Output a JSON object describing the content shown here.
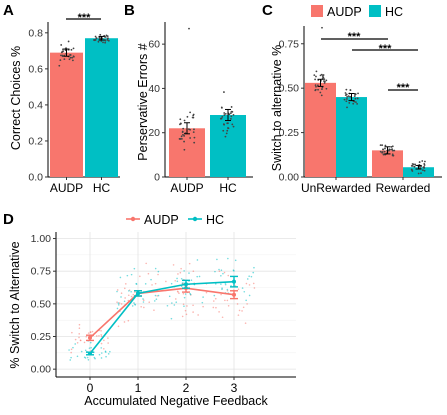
{
  "colors": {
    "AUDP": "#F8766D",
    "HC": "#00BFC4"
  },
  "chart_data": [
    {
      "panel": "A",
      "type": "bar",
      "ylabel": "Correct Choices %",
      "categories": [
        "AUDP",
        "HC"
      ],
      "values": [
        0.69,
        0.77
      ],
      "errors": [
        0.02,
        0.01
      ],
      "ylim": [
        0,
        0.86
      ],
      "yticks": [
        "0.0",
        "0.2",
        "0.4",
        "0.6",
        "0.8"
      ],
      "annotation": "***"
    },
    {
      "panel": "B",
      "type": "bar",
      "ylabel": "Perservative Errors #",
      "categories": [
        "AUDP",
        "HC"
      ],
      "values": [
        22,
        28
      ],
      "errors": [
        2.5,
        2.5
      ],
      "ylim": [
        0,
        70
      ],
      "yticks": [
        "0",
        "20",
        "40",
        "60"
      ]
    },
    {
      "panel": "C",
      "type": "bar",
      "ylabel": "Switch to alternative %",
      "categories": [
        "UnRewarded",
        "Rewarded"
      ],
      "legend": [
        "AUDP",
        "HC"
      ],
      "series": [
        {
          "name": "AUDP",
          "values": [
            0.53,
            0.15
          ],
          "errors": [
            0.02,
            0.02
          ]
        },
        {
          "name": "HC",
          "values": [
            0.45,
            0.055
          ],
          "errors": [
            0.02,
            0.01
          ]
        }
      ],
      "ylim": [
        0,
        0.85
      ],
      "yticks": [
        "0.00",
        "0.25",
        "0.50",
        "0.75"
      ],
      "annotations": [
        "***",
        "***",
        "***"
      ]
    },
    {
      "panel": "D",
      "type": "line",
      "xlabel": "Accumulated Negative Feedback",
      "ylabel": "% Switch to Alternative",
      "x": [
        0,
        1,
        2,
        3
      ],
      "xticks": [
        "0",
        "1",
        "2",
        "3"
      ],
      "legend": [
        "AUDP",
        "HC"
      ],
      "series": [
        {
          "name": "AUDP",
          "values": [
            0.24,
            0.58,
            0.62,
            0.57
          ],
          "errors": [
            0.02,
            0.02,
            0.03,
            0.03
          ]
        },
        {
          "name": "HC",
          "values": [
            0.12,
            0.58,
            0.65,
            0.67
          ],
          "errors": [
            0.01,
            0.02,
            0.03,
            0.04
          ]
        }
      ],
      "ylim": [
        -0.06,
        1.05
      ],
      "yticks": [
        "0.00",
        "0.25",
        "0.50",
        "0.75",
        "1.00"
      ],
      "grid": true
    }
  ]
}
